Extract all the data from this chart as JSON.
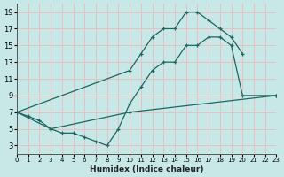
{
  "xlabel": "Humidex (Indice chaleur)",
  "bg_color": "#c8e8e8",
  "grid_color": "#e8c0c0",
  "line_color": "#1a6860",
  "xlim": [
    0,
    23
  ],
  "ylim": [
    2,
    20
  ],
  "xticks": [
    0,
    1,
    2,
    3,
    4,
    5,
    6,
    7,
    8,
    9,
    10,
    11,
    12,
    13,
    14,
    15,
    16,
    17,
    18,
    19,
    20,
    21,
    22,
    23
  ],
  "yticks": [
    3,
    5,
    7,
    9,
    11,
    13,
    15,
    17,
    19
  ],
  "line1_x": [
    0,
    10,
    11,
    12,
    13,
    14,
    15,
    16,
    17,
    18,
    19,
    20
  ],
  "line1_y": [
    7,
    12,
    14,
    16,
    17,
    17,
    19,
    19,
    18,
    17,
    16,
    14
  ],
  "line2_x": [
    0,
    1,
    2,
    3,
    4,
    5,
    6,
    7,
    8,
    9,
    10,
    11,
    12,
    13,
    14,
    15,
    16,
    17,
    18,
    19,
    20,
    23
  ],
  "line2_y": [
    7,
    6.5,
    6,
    5,
    4.5,
    4.5,
    4,
    3.5,
    3,
    5,
    8,
    10,
    12,
    13,
    13,
    15,
    15,
    16,
    16,
    15,
    9,
    9
  ],
  "line3_x": [
    0,
    3,
    10,
    23
  ],
  "line3_y": [
    7,
    5,
    7,
    9
  ]
}
